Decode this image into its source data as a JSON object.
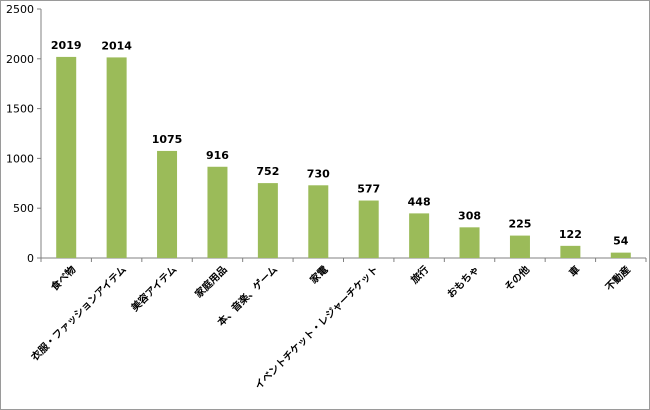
{
  "chart_data": {
    "type": "bar",
    "title": "",
    "xlabel": "",
    "ylabel": "",
    "ylim": [
      0,
      2500
    ],
    "yticks": [
      0,
      500,
      1000,
      1500,
      2000,
      2500
    ],
    "grid": false,
    "legend": "none",
    "bar_color": "#9bbb59",
    "categories": [
      "食べ物",
      "衣服・ファッションアイテム",
      "美容アイテム",
      "家庭用品",
      "本、音楽、ゲーム",
      "家電",
      "イベントチケット・レジャーチケット",
      "旅行",
      "おもちゃ",
      "その他",
      "車",
      "不動産"
    ],
    "values": [
      2019,
      2014,
      1075,
      916,
      752,
      730,
      577,
      448,
      308,
      225,
      122,
      54
    ]
  }
}
